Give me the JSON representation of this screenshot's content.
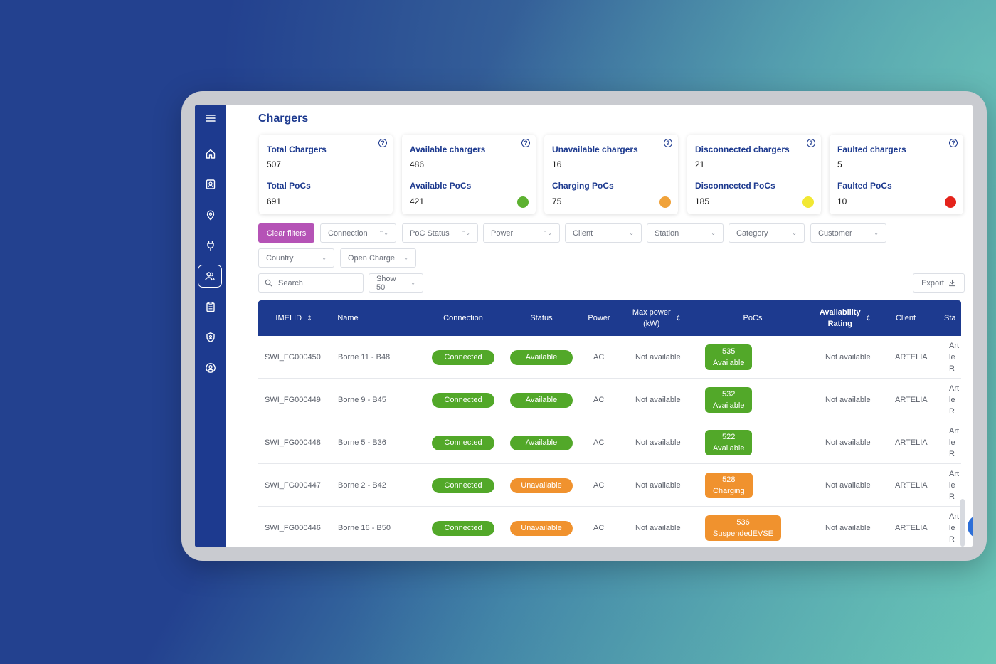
{
  "page": {
    "title": "Chargers"
  },
  "sidebar": {
    "icons": [
      "menu-icon",
      "home-icon",
      "contact-card-icon",
      "location-pin-icon",
      "plug-icon",
      "users-icon",
      "clipboard-icon",
      "shield-icon",
      "account-icon"
    ],
    "active": "users-icon"
  },
  "cards": [
    {
      "title": "Total Chargers",
      "value": "507",
      "poc_title": "Total PoCs",
      "poc_value": "691",
      "dot": ""
    },
    {
      "title": "Available chargers",
      "value": "486",
      "poc_title": "Available PoCs",
      "poc_value": "421",
      "dot": "#5db131"
    },
    {
      "title": "Unavailable chargers",
      "value": "16",
      "poc_title": "Charging PoCs",
      "poc_value": "75",
      "dot": "#f0a23a"
    },
    {
      "title": "Disconnected chargers",
      "value": "21",
      "poc_title": "Disconnected PoCs",
      "poc_value": "185",
      "dot": "#f2e833"
    },
    {
      "title": "Faulted chargers",
      "value": "5",
      "poc_title": "Faulted PoCs",
      "poc_value": "10",
      "dot": "#e4231b"
    }
  ],
  "filters": {
    "clear_label": "Clear filters",
    "connection": "Connection",
    "poc_status": "PoC Status",
    "power": "Power",
    "client": "Client",
    "station": "Station",
    "category": "Category",
    "customer": "Customer",
    "country": "Country",
    "open_charge": "Open Charge"
  },
  "toolbar": {
    "search_placeholder": "Search",
    "show_label": "Show 50",
    "export_label": "Export"
  },
  "colors": {
    "primary": "#1d3a8f",
    "accent": "#b553b6",
    "connected": "#52a829",
    "available": "#52a829",
    "unavailable": "#f0922e"
  },
  "table": {
    "headers": {
      "imei": "IMEI ID",
      "name": "Name",
      "connection": "Connection",
      "status": "Status",
      "power": "Power",
      "max_power_1": "Max power",
      "max_power_2": "(kW)",
      "pocs": "PoCs",
      "availability_1": "Availability",
      "availability_2": "Rating",
      "client": "Client",
      "sta": "Sta"
    },
    "rows": [
      {
        "imei": "SWI_FG000450",
        "name": "Borne 11 - B48",
        "connection": "Connected",
        "status": "Available",
        "status_kind": "available",
        "power": "AC",
        "max_power": "Not available",
        "poc_id": "535",
        "poc_status": "Available",
        "poc_kind": "available",
        "availability": "Not available",
        "client": "ARTELIA",
        "sta_1": "Art",
        "sta_2": "le R"
      },
      {
        "imei": "SWI_FG000449",
        "name": "Borne 9 - B45",
        "connection": "Connected",
        "status": "Available",
        "status_kind": "available",
        "power": "AC",
        "max_power": "Not available",
        "poc_id": "532",
        "poc_status": "Available",
        "poc_kind": "available",
        "availability": "Not available",
        "client": "ARTELIA",
        "sta_1": "Art",
        "sta_2": "le R"
      },
      {
        "imei": "SWI_FG000448",
        "name": "Borne 5 - B36",
        "connection": "Connected",
        "status": "Available",
        "status_kind": "available",
        "power": "AC",
        "max_power": "Not available",
        "poc_id": "522",
        "poc_status": "Available",
        "poc_kind": "available",
        "availability": "Not available",
        "client": "ARTELIA",
        "sta_1": "Art",
        "sta_2": "le R"
      },
      {
        "imei": "SWI_FG000447",
        "name": "Borne 2 - B42",
        "connection": "Connected",
        "status": "Unavailable",
        "status_kind": "unavailable",
        "power": "AC",
        "max_power": "Not available",
        "poc_id": "528",
        "poc_status": "Charging",
        "poc_kind": "unavailable",
        "availability": "Not available",
        "client": "ARTELIA",
        "sta_1": "Art",
        "sta_2": "le R"
      },
      {
        "imei": "SWI_FG000446",
        "name": "Borne 16 - B50",
        "connection": "Connected",
        "status": "Unavailable",
        "status_kind": "unavailable",
        "power": "AC",
        "max_power": "Not available",
        "poc_id": "536",
        "poc_status": "SuspendedEVSE",
        "poc_kind": "unavailable",
        "availability": "Not available",
        "client": "ARTELIA",
        "sta_1": "Art",
        "sta_2": "le R"
      }
    ]
  }
}
